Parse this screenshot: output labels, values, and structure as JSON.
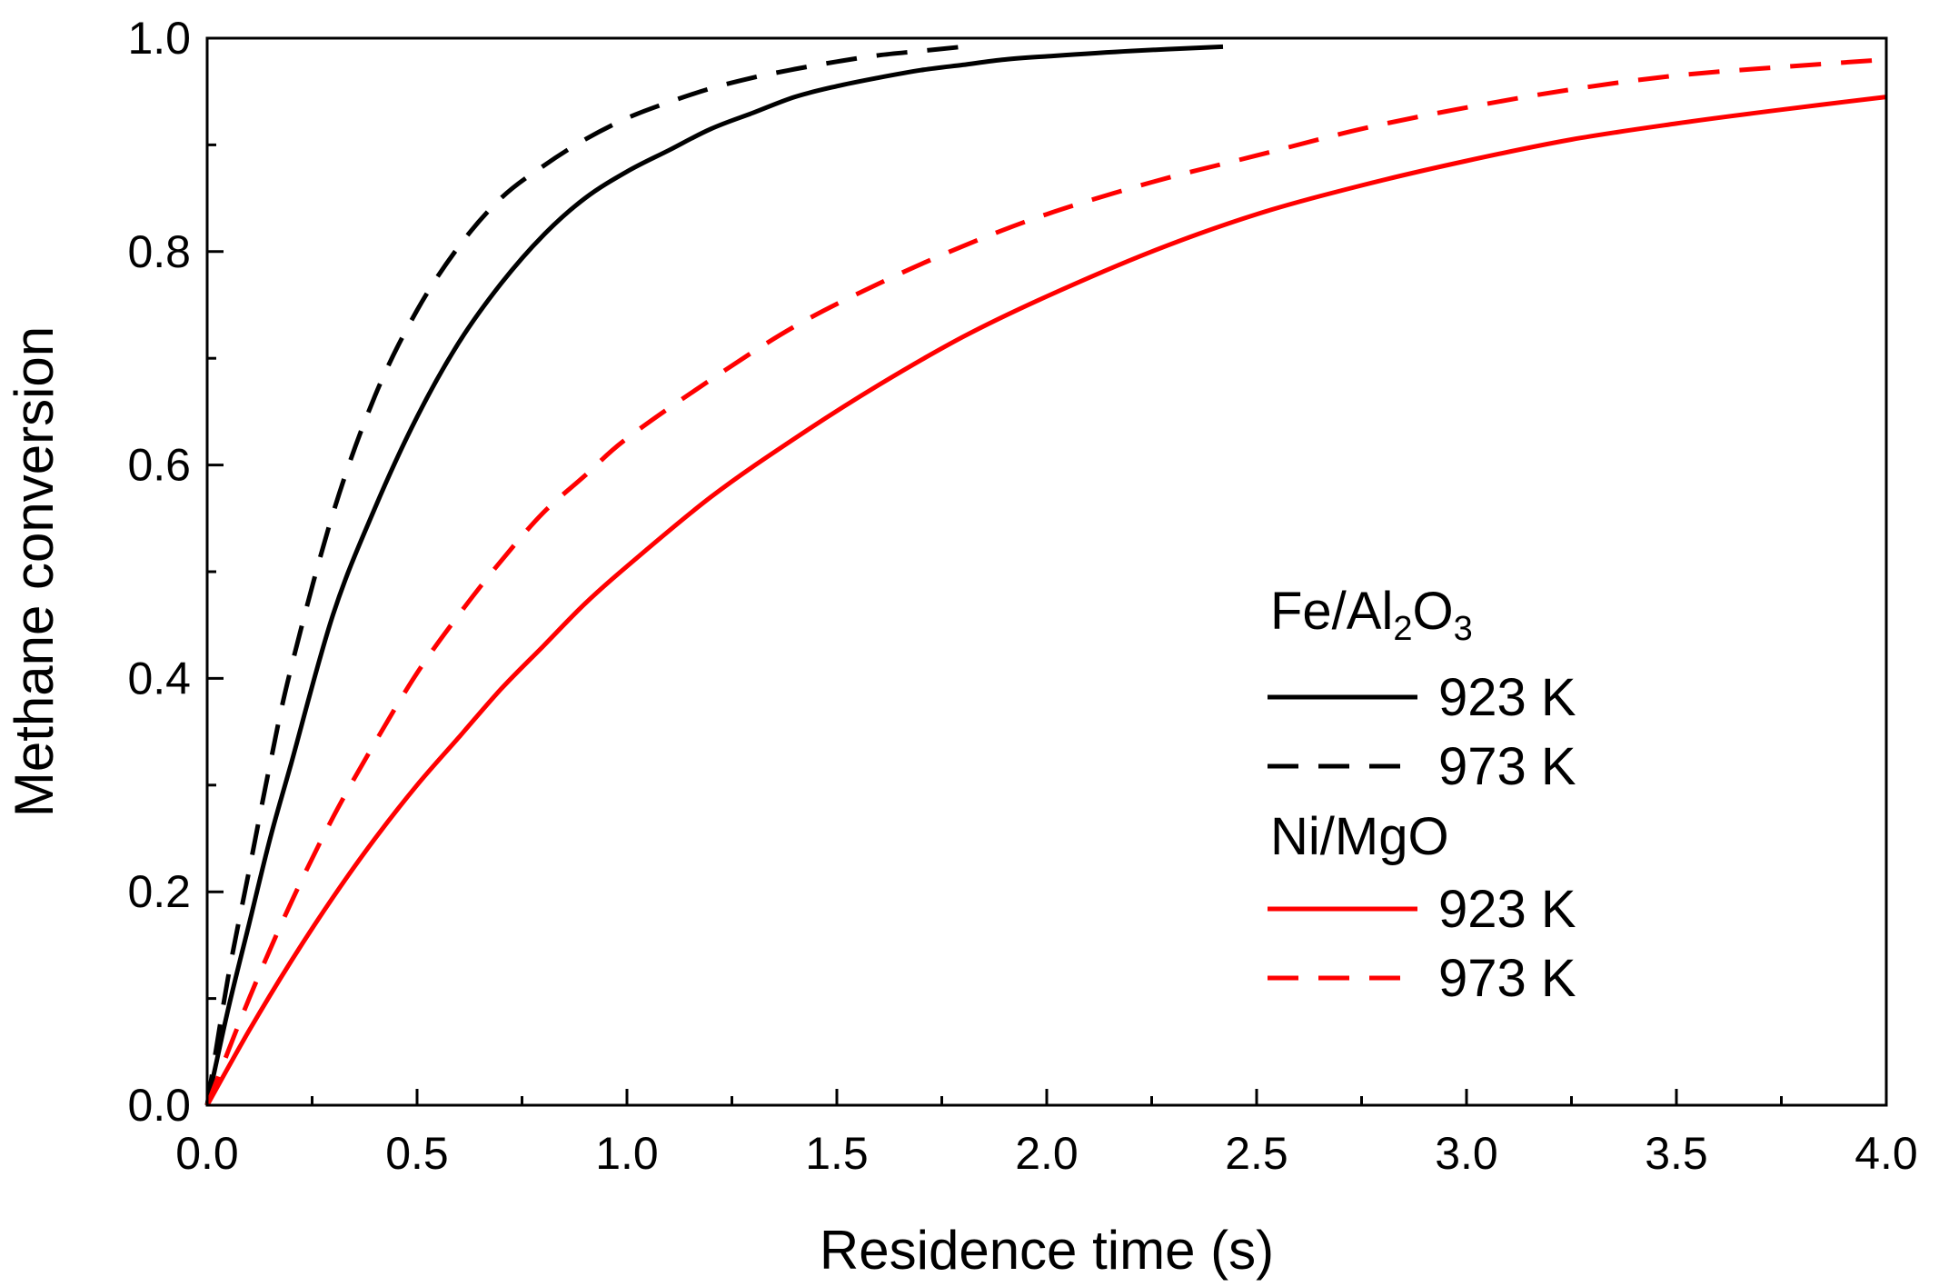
{
  "chart_data": {
    "type": "line",
    "xlabel": "Residence time (s)",
    "ylabel": "Methane conversion",
    "xlim": [
      0,
      4
    ],
    "ylim": [
      0,
      1
    ],
    "x_ticks": [
      0,
      0.5,
      1,
      1.5,
      2,
      2.5,
      3,
      3.5,
      4
    ],
    "x_tick_labels": [
      "0.0",
      "0.5",
      "1.0",
      "1.5",
      "2.0",
      "2.5",
      "3.0",
      "3.5",
      "4.0"
    ],
    "y_ticks": [
      0,
      0.2,
      0.4,
      0.6,
      0.8,
      1
    ],
    "y_tick_labels": [
      "0.0",
      "0.2",
      "0.4",
      "0.6",
      "0.8",
      "1.0"
    ],
    "grid": false,
    "legend_placement": "bottom-right",
    "legend": {
      "groups": [
        {
          "label": "Fe/Al2O3",
          "label_parts": {
            "a": "Fe/Al",
            "sub1": "2",
            "b": "O",
            "sub2": "3"
          },
          "entries": [
            {
              "label": "923 K",
              "color": "#000000",
              "dash": "solid"
            },
            {
              "label": "973 K",
              "color": "#000000",
              "dash": "dashed"
            }
          ]
        },
        {
          "label": "Ni/MgO",
          "entries": [
            {
              "label": "923 K",
              "color": "#ff0000",
              "dash": "solid"
            },
            {
              "label": "973 K",
              "color": "#ff0000",
              "dash": "dashed"
            }
          ]
        }
      ]
    },
    "series": [
      {
        "catalyst": "Fe/Al2O3",
        "temperature": "923 K",
        "color": "#000000",
        "dash": "solid",
        "x": [
          0,
          0.05,
          0.1,
          0.15,
          0.2,
          0.3,
          0.4,
          0.5,
          0.6,
          0.7,
          0.8,
          0.9,
          1.0,
          1.1,
          1.2,
          1.3,
          1.4,
          1.5,
          1.6,
          1.7,
          1.8,
          1.9,
          2.0,
          2.2,
          2.42
        ],
        "y": [
          0,
          0.09,
          0.17,
          0.25,
          0.32,
          0.46,
          0.56,
          0.645,
          0.715,
          0.77,
          0.815,
          0.85,
          0.875,
          0.895,
          0.915,
          0.93,
          0.945,
          0.955,
          0.963,
          0.97,
          0.975,
          0.98,
          0.983,
          0.988,
          0.992
        ]
      },
      {
        "catalyst": "Fe/Al2O3",
        "temperature": "973 K",
        "color": "#000000",
        "dash": "dashed",
        "x": [
          0,
          0.05,
          0.1,
          0.15,
          0.2,
          0.3,
          0.4,
          0.5,
          0.6,
          0.7,
          0.8,
          0.9,
          1.0,
          1.1,
          1.2,
          1.3,
          1.4,
          1.5,
          1.6,
          1.7,
          1.8
        ],
        "y": [
          0,
          0.12,
          0.22,
          0.32,
          0.41,
          0.555,
          0.665,
          0.745,
          0.805,
          0.85,
          0.88,
          0.905,
          0.925,
          0.94,
          0.953,
          0.963,
          0.971,
          0.978,
          0.984,
          0.988,
          0.992
        ]
      },
      {
        "catalyst": "Ni/MgO",
        "temperature": "923 K",
        "color": "#ff0000",
        "dash": "solid",
        "x": [
          0,
          0.1,
          0.2,
          0.3,
          0.4,
          0.5,
          0.6,
          0.7,
          0.8,
          0.9,
          1.0,
          1.2,
          1.4,
          1.6,
          1.8,
          2.0,
          2.25,
          2.5,
          2.75,
          3.0,
          3.25,
          3.5,
          3.75,
          4.0
        ],
        "y": [
          0,
          0.07,
          0.135,
          0.195,
          0.25,
          0.3,
          0.345,
          0.39,
          0.43,
          0.47,
          0.505,
          0.57,
          0.625,
          0.675,
          0.72,
          0.758,
          0.8,
          0.835,
          0.862,
          0.885,
          0.905,
          0.92,
          0.933,
          0.945
        ]
      },
      {
        "catalyst": "Ni/MgO",
        "temperature": "973 K",
        "color": "#ff0000",
        "dash": "dashed",
        "x": [
          0,
          0.1,
          0.2,
          0.3,
          0.4,
          0.5,
          0.6,
          0.7,
          0.8,
          0.9,
          1.0,
          1.2,
          1.4,
          1.6,
          1.8,
          2.0,
          2.25,
          2.5,
          2.75,
          3.0,
          3.25,
          3.5,
          3.75,
          4.0
        ],
        "y": [
          0,
          0.1,
          0.19,
          0.27,
          0.34,
          0.405,
          0.46,
          0.51,
          0.555,
          0.59,
          0.625,
          0.68,
          0.73,
          0.77,
          0.805,
          0.835,
          0.865,
          0.89,
          0.915,
          0.935,
          0.952,
          0.965,
          0.973,
          0.98
        ]
      }
    ]
  }
}
